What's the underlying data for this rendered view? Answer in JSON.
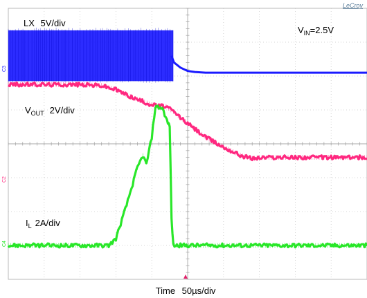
{
  "chart_data": {
    "type": "line",
    "brand": "LeCroy",
    "xlabel_prefix": "Time",
    "xlabel_scale": "50µs/div",
    "x_divisions": 10,
    "y_divisions": 8,
    "x_unit": "div",
    "annotations": {
      "vin_main": "V",
      "vin_sub": "IN",
      "vin_value": "=2.5V"
    },
    "series": [
      {
        "name": "LX",
        "label_main": "LX",
        "label_sub": "",
        "scale": "5V/div",
        "color": "#1a1aff",
        "marker": "C3",
        "baseline_div": 6.1,
        "style": "switching",
        "switch_end_div": 4.6,
        "high_div": 7.35,
        "low_div": 5.85,
        "x": [
          0,
          4.55,
          4.62,
          4.8,
          5.0,
          5.2,
          5.5,
          10
        ],
        "y": [
          6.6,
          6.6,
          6.4,
          6.25,
          6.15,
          6.12,
          6.1,
          6.1
        ]
      },
      {
        "name": "VOUT",
        "label_main": "V",
        "label_sub": "OUT",
        "scale": "2V/div",
        "color": "#ff1f7a",
        "marker": "C2",
        "baseline_div": 3.7,
        "style": "line",
        "x": [
          0,
          2.0,
          2.6,
          3.0,
          3.5,
          4.0,
          4.4,
          4.6,
          5.0,
          5.5,
          6.0,
          6.5,
          6.8,
          7.2,
          10
        ],
        "y": [
          5.75,
          5.75,
          5.72,
          5.6,
          5.35,
          5.15,
          5.1,
          4.95,
          4.6,
          4.2,
          3.9,
          3.65,
          3.57,
          3.6,
          3.6
        ]
      },
      {
        "name": "IL",
        "label_main": "I",
        "label_sub": "L",
        "scale": "2A/div",
        "color": "#1fe61f",
        "marker": "C4",
        "baseline_div": 1.0,
        "style": "line",
        "x": [
          0,
          2.8,
          3.0,
          3.3,
          3.6,
          3.75,
          3.85,
          4.0,
          4.1,
          4.3,
          4.45,
          4.5,
          4.55,
          4.6,
          10
        ],
        "y": [
          1.0,
          1.0,
          1.2,
          2.2,
          3.3,
          3.65,
          3.4,
          4.2,
          5.1,
          5.05,
          4.6,
          4.55,
          1.8,
          1.0,
          1.0
        ]
      }
    ]
  }
}
